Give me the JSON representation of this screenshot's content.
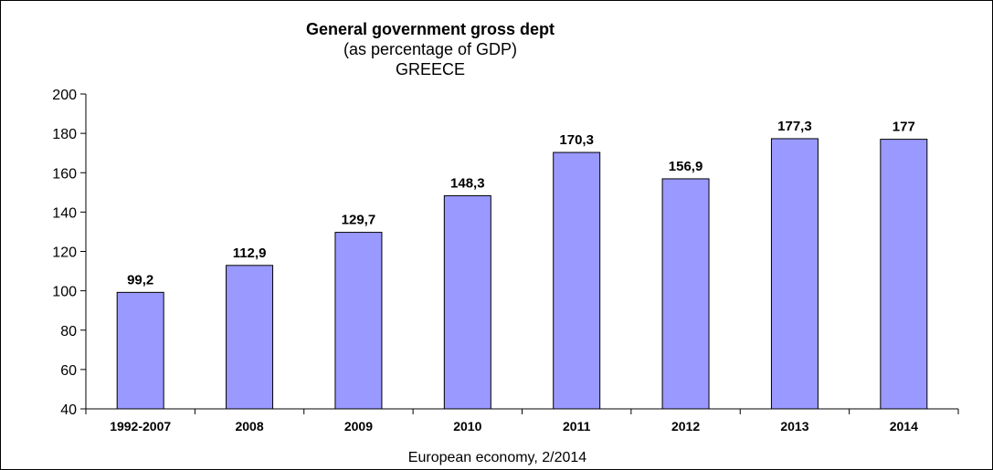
{
  "chart_data": {
    "type": "bar",
    "title": "General government gross dept",
    "subtitle": "(as percentage of GDP)",
    "country": "GREECE",
    "categories": [
      "1992-2007",
      "2008",
      "2009",
      "2010",
      "2011",
      "2012",
      "2013",
      "2014"
    ],
    "values": [
      99.2,
      112.9,
      129.7,
      148.3,
      170.3,
      156.9,
      177.3,
      177
    ],
    "data_labels": [
      "99,2",
      "112,9",
      "129,7",
      "148,3",
      "170,3",
      "156,9",
      "177,3",
      "177"
    ],
    "y_ticks": [
      "40",
      "60",
      "80",
      "100",
      "120",
      "140",
      "160",
      "180",
      "200"
    ],
    "ylim": [
      40,
      200
    ],
    "grid": false,
    "legend": false,
    "source": "European economy, 2/2014",
    "colors": {
      "bar_fill": "#9999ff",
      "bar_stroke": "#000000"
    }
  }
}
